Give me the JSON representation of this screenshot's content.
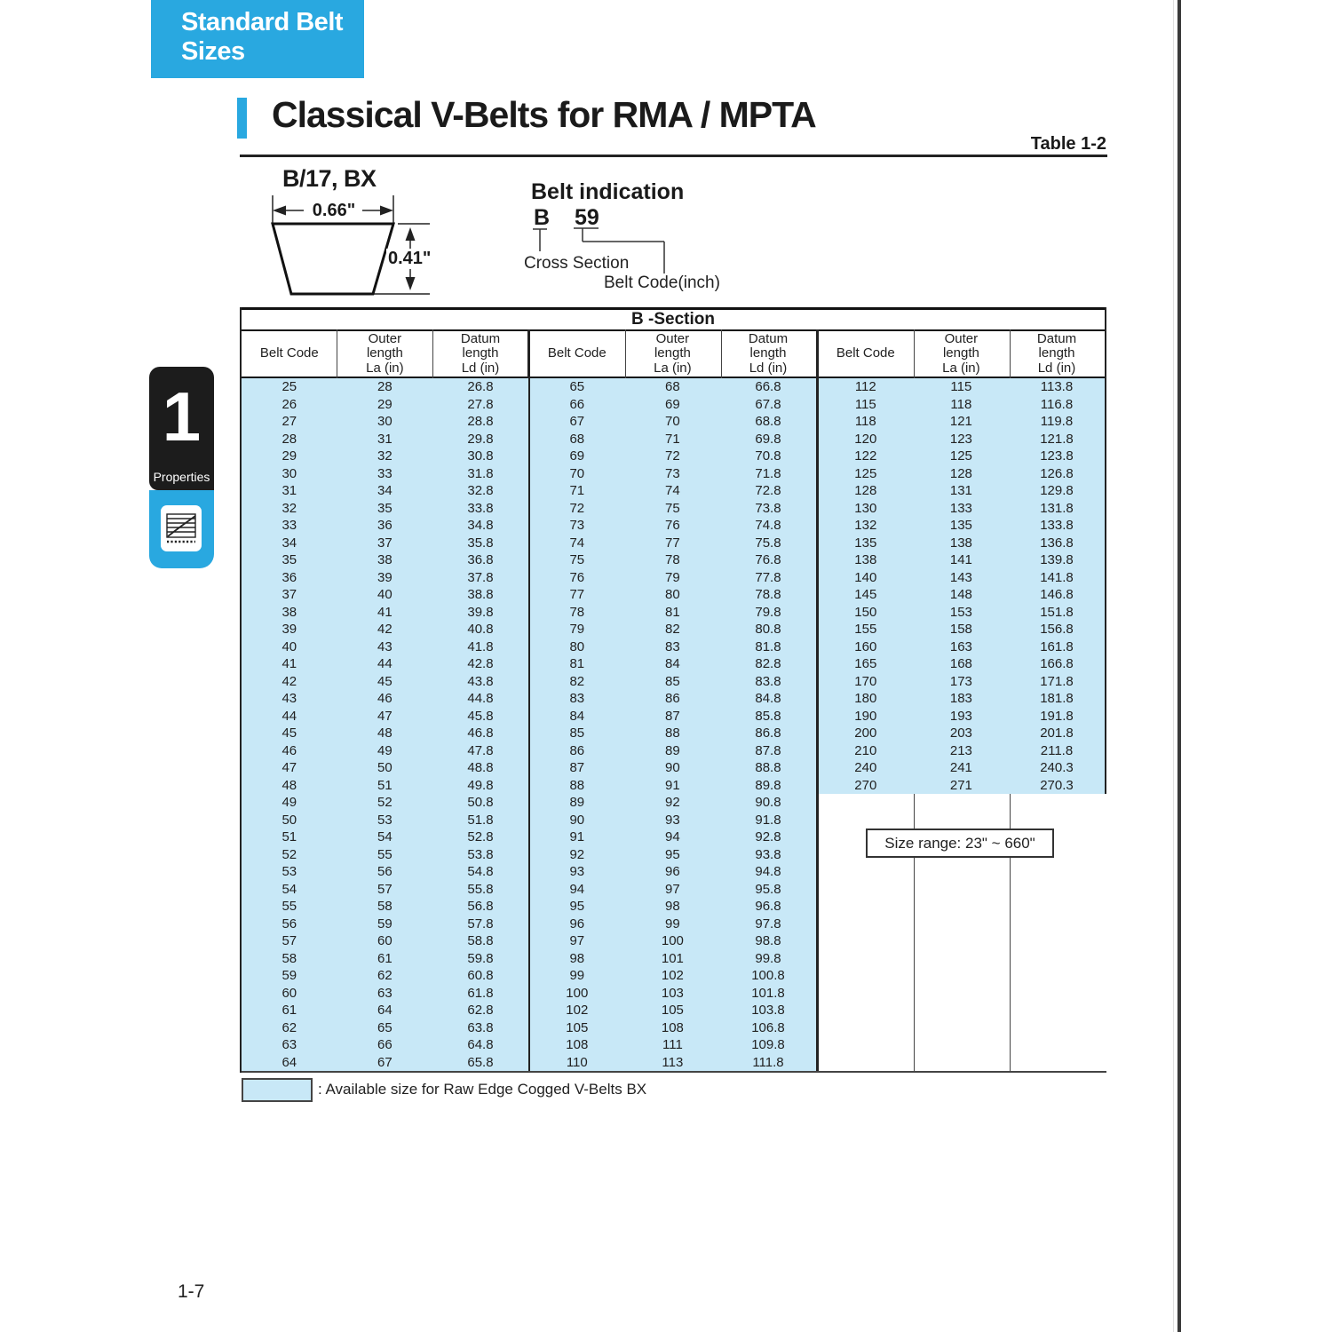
{
  "page": {
    "banner": "Standard Belt Sizes",
    "title": "Classical V-Belts for RMA / MPTA",
    "table_ref": "Table 1-2",
    "page_number": "1-7"
  },
  "sidebar": {
    "chapter_number": "1",
    "chapter_label": "Properties",
    "icon": "belt-length-chart-icon"
  },
  "diagram": {
    "profile_label": "B/17, BX",
    "width_dim": "0.66\"",
    "height_dim": "0.41\"",
    "indication_title": "Belt indication",
    "indication_code": "B",
    "indication_number": "59",
    "cross_section_label": "Cross Section",
    "belt_code_label": "Belt Code(inch)"
  },
  "table": {
    "section_title": "B -Section",
    "columns": [
      [
        "Belt Code"
      ],
      [
        "Outer",
        "length",
        "La (in)"
      ],
      [
        "Datum",
        "length",
        "Ld (in)"
      ]
    ],
    "highlight_color": "#c8e8f7",
    "size_range": "Size range: 23\" ~ 660\"",
    "legend": ": Available size for Raw Edge Cogged V-Belts BX",
    "groups": [
      {
        "rows": [
          [
            "25",
            "28",
            "26.8"
          ],
          [
            "26",
            "29",
            "27.8"
          ],
          [
            "27",
            "30",
            "28.8"
          ],
          [
            "28",
            "31",
            "29.8"
          ],
          [
            "29",
            "32",
            "30.8"
          ],
          [
            "30",
            "33",
            "31.8"
          ],
          [
            "31",
            "34",
            "32.8"
          ],
          [
            "32",
            "35",
            "33.8"
          ],
          [
            "33",
            "36",
            "34.8"
          ],
          [
            "34",
            "37",
            "35.8"
          ],
          [
            "35",
            "38",
            "36.8"
          ],
          [
            "36",
            "39",
            "37.8"
          ],
          [
            "37",
            "40",
            "38.8"
          ],
          [
            "38",
            "41",
            "39.8"
          ],
          [
            "39",
            "42",
            "40.8"
          ],
          [
            "40",
            "43",
            "41.8"
          ],
          [
            "41",
            "44",
            "42.8"
          ],
          [
            "42",
            "45",
            "43.8"
          ],
          [
            "43",
            "46",
            "44.8"
          ],
          [
            "44",
            "47",
            "45.8"
          ],
          [
            "45",
            "48",
            "46.8"
          ],
          [
            "46",
            "49",
            "47.8"
          ],
          [
            "47",
            "50",
            "48.8"
          ],
          [
            "48",
            "51",
            "49.8"
          ],
          [
            "49",
            "52",
            "50.8"
          ],
          [
            "50",
            "53",
            "51.8"
          ],
          [
            "51",
            "54",
            "52.8"
          ],
          [
            "52",
            "55",
            "53.8"
          ],
          [
            "53",
            "56",
            "54.8"
          ],
          [
            "54",
            "57",
            "55.8"
          ],
          [
            "55",
            "58",
            "56.8"
          ],
          [
            "56",
            "59",
            "57.8"
          ],
          [
            "57",
            "60",
            "58.8"
          ],
          [
            "58",
            "61",
            "59.8"
          ],
          [
            "59",
            "62",
            "60.8"
          ],
          [
            "60",
            "63",
            "61.8"
          ],
          [
            "61",
            "64",
            "62.8"
          ],
          [
            "62",
            "65",
            "63.8"
          ],
          [
            "63",
            "66",
            "64.8"
          ],
          [
            "64",
            "67",
            "65.8"
          ]
        ]
      },
      {
        "rows": [
          [
            "65",
            "68",
            "66.8"
          ],
          [
            "66",
            "69",
            "67.8"
          ],
          [
            "67",
            "70",
            "68.8"
          ],
          [
            "68",
            "71",
            "69.8"
          ],
          [
            "69",
            "72",
            "70.8"
          ],
          [
            "70",
            "73",
            "71.8"
          ],
          [
            "71",
            "74",
            "72.8"
          ],
          [
            "72",
            "75",
            "73.8"
          ],
          [
            "73",
            "76",
            "74.8"
          ],
          [
            "74",
            "77",
            "75.8"
          ],
          [
            "75",
            "78",
            "76.8"
          ],
          [
            "76",
            "79",
            "77.8"
          ],
          [
            "77",
            "80",
            "78.8"
          ],
          [
            "78",
            "81",
            "79.8"
          ],
          [
            "79",
            "82",
            "80.8"
          ],
          [
            "80",
            "83",
            "81.8"
          ],
          [
            "81",
            "84",
            "82.8"
          ],
          [
            "82",
            "85",
            "83.8"
          ],
          [
            "83",
            "86",
            "84.8"
          ],
          [
            "84",
            "87",
            "85.8"
          ],
          [
            "85",
            "88",
            "86.8"
          ],
          [
            "86",
            "89",
            "87.8"
          ],
          [
            "87",
            "90",
            "88.8"
          ],
          [
            "88",
            "91",
            "89.8"
          ],
          [
            "89",
            "92",
            "90.8"
          ],
          [
            "90",
            "93",
            "91.8"
          ],
          [
            "91",
            "94",
            "92.8"
          ],
          [
            "92",
            "95",
            "93.8"
          ],
          [
            "93",
            "96",
            "94.8"
          ],
          [
            "94",
            "97",
            "95.8"
          ],
          [
            "95",
            "98",
            "96.8"
          ],
          [
            "96",
            "99",
            "97.8"
          ],
          [
            "97",
            "100",
            "98.8"
          ],
          [
            "98",
            "101",
            "99.8"
          ],
          [
            "99",
            "102",
            "100.8"
          ],
          [
            "100",
            "103",
            "101.8"
          ],
          [
            "102",
            "105",
            "103.8"
          ],
          [
            "105",
            "108",
            "106.8"
          ],
          [
            "108",
            "111",
            "109.8"
          ],
          [
            "110",
            "113",
            "111.8"
          ]
        ]
      },
      {
        "rows": [
          [
            "112",
            "115",
            "113.8"
          ],
          [
            "115",
            "118",
            "116.8"
          ],
          [
            "118",
            "121",
            "119.8"
          ],
          [
            "120",
            "123",
            "121.8"
          ],
          [
            "122",
            "125",
            "123.8"
          ],
          [
            "125",
            "128",
            "126.8"
          ],
          [
            "128",
            "131",
            "129.8"
          ],
          [
            "130",
            "133",
            "131.8"
          ],
          [
            "132",
            "135",
            "133.8"
          ],
          [
            "135",
            "138",
            "136.8"
          ],
          [
            "138",
            "141",
            "139.8"
          ],
          [
            "140",
            "143",
            "141.8"
          ],
          [
            "145",
            "148",
            "146.8"
          ],
          [
            "150",
            "153",
            "151.8"
          ],
          [
            "155",
            "158",
            "156.8"
          ],
          [
            "160",
            "163",
            "161.8"
          ],
          [
            "165",
            "168",
            "166.8"
          ],
          [
            "170",
            "173",
            "171.8"
          ],
          [
            "180",
            "183",
            "181.8"
          ],
          [
            "190",
            "193",
            "191.8"
          ],
          [
            "200",
            "203",
            "201.8"
          ],
          [
            "210",
            "213",
            "211.8"
          ],
          [
            "240",
            "241",
            "240.3"
          ],
          [
            "270",
            "271",
            "270.3"
          ]
        ]
      }
    ]
  }
}
